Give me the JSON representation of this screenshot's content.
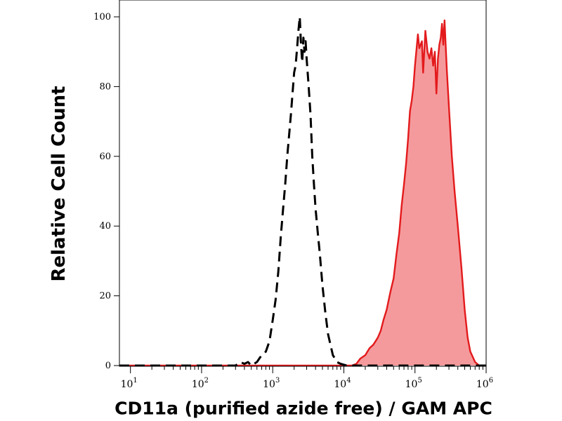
{
  "chart_data": {
    "type": "area",
    "xlabel": "CD11a (purified azide free) / GAM APC",
    "ylabel": "Relative Cell Count",
    "x_scale": "log",
    "xlim": [
      7,
      1000000
    ],
    "ylim": [
      0,
      100
    ],
    "x_ticks": [
      {
        "value": 10,
        "base": "10",
        "exp": "1"
      },
      {
        "value": 100,
        "base": "10",
        "exp": "2"
      },
      {
        "value": 1000,
        "base": "10",
        "exp": "3"
      },
      {
        "value": 10000,
        "base": "10",
        "exp": "4"
      },
      {
        "value": 100000,
        "base": "10",
        "exp": "5"
      },
      {
        "value": 1000000,
        "base": "10",
        "exp": "6"
      }
    ],
    "y_ticks": [
      "0",
      "20",
      "40",
      "60",
      "80",
      "100"
    ],
    "y_tick_values": [
      0,
      20,
      40,
      60,
      80,
      100
    ],
    "grid": false,
    "series": [
      {
        "style": "dashed",
        "color": "#000000",
        "fill": "none",
        "x": [
          7,
          300,
          350,
          400,
          450,
          500,
          600,
          700,
          800,
          900,
          1000,
          1100,
          1200,
          1300,
          1400,
          1500,
          1600,
          1700,
          1800,
          1900,
          2000,
          2100,
          2200,
          2300,
          2400,
          2500,
          2600,
          2700,
          2800,
          2900,
          3000,
          3200,
          3400,
          3600,
          3800,
          4000,
          4300,
          4600,
          5000,
          5500,
          6000,
          7000,
          8000,
          9000,
          11000,
          15000,
          1000000
        ],
        "y": [
          0,
          0,
          1,
          0.5,
          1,
          0,
          1,
          3,
          4,
          7,
          13,
          19,
          27,
          37,
          45,
          52,
          60,
          66,
          72,
          78,
          84,
          86,
          91,
          96,
          100,
          92,
          87,
          94,
          90,
          93,
          88,
          80,
          72,
          60,
          52,
          45,
          38,
          32,
          23,
          15,
          9,
          3,
          1,
          0.5,
          0,
          0,
          0
        ]
      },
      {
        "style": "solid",
        "color": "#e31a1c",
        "fill": "#f59a9c",
        "x": [
          7,
          10000,
          13000,
          15000,
          17000,
          20000,
          23000,
          26000,
          30000,
          33000,
          36000,
          40000,
          45000,
          50000,
          55000,
          60000,
          65000,
          70000,
          75000,
          80000,
          85000,
          90000,
          95000,
          100000,
          110000,
          115000,
          125000,
          130000,
          140000,
          150000,
          160000,
          170000,
          180000,
          190000,
          200000,
          210000,
          220000,
          230000,
          240000,
          250000,
          260000,
          280000,
          300000,
          330000,
          360000,
          400000,
          450000,
          500000,
          550000,
          600000,
          700000,
          800000,
          1000000
        ],
        "y": [
          0,
          0,
          0,
          0.5,
          2,
          3,
          5,
          6,
          8,
          10,
          13,
          16,
          21,
          25,
          32,
          38,
          46,
          52,
          58,
          65,
          73,
          76,
          80,
          86,
          95,
          91,
          93,
          84,
          96,
          90,
          88,
          91,
          86,
          90,
          78,
          88,
          92,
          94,
          98,
          92,
          99,
          85,
          74,
          60,
          50,
          40,
          28,
          16,
          8,
          4,
          1,
          0,
          0
        ]
      }
    ]
  }
}
